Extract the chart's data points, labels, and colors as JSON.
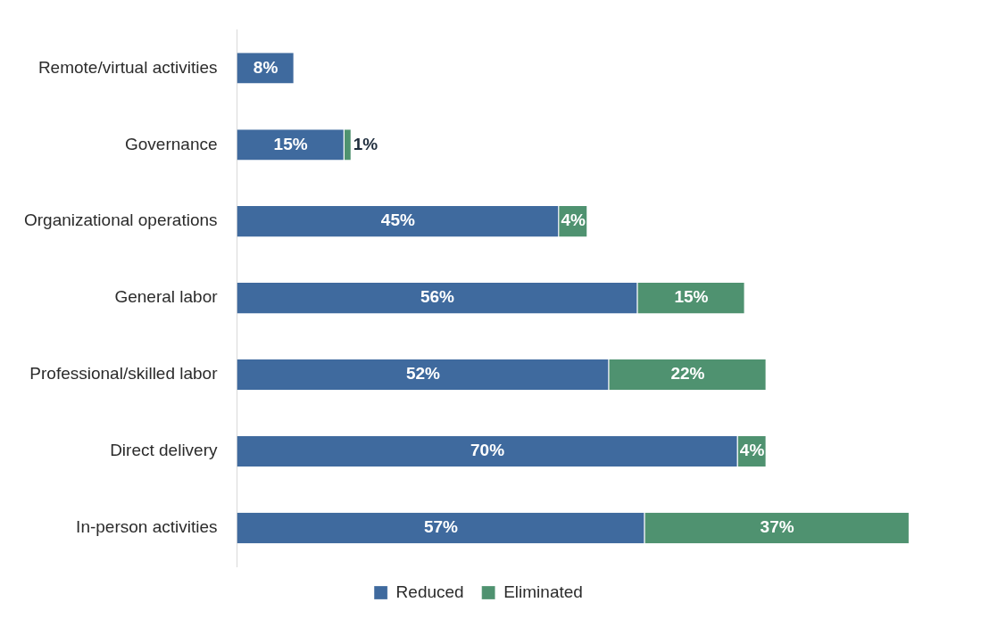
{
  "chart_data": {
    "type": "bar",
    "orientation": "horizontal",
    "stacked": true,
    "legend": "bottom",
    "grid": false,
    "tick_labels": "y",
    "categories": [
      "Remote/virtual activities",
      "Governance",
      "Organizational operations",
      "General labor",
      "Professional/skilled labor",
      "Direct delivery",
      "In-person activities"
    ],
    "series": [
      {
        "name": "Reduced",
        "color": "#3f6a9e",
        "values": [
          8,
          15,
          45,
          56,
          52,
          70,
          57
        ],
        "value_labels": [
          "8%",
          "15%",
          "45%",
          "56%",
          "52%",
          "70%",
          "57%"
        ]
      },
      {
        "name": "Eliminated",
        "color": "#4f9270",
        "values": [
          null,
          1,
          4,
          15,
          22,
          4,
          37
        ],
        "value_labels": [
          null,
          "1%",
          "4%",
          "15%",
          "22%",
          "4%",
          "37%"
        ]
      }
    ]
  }
}
